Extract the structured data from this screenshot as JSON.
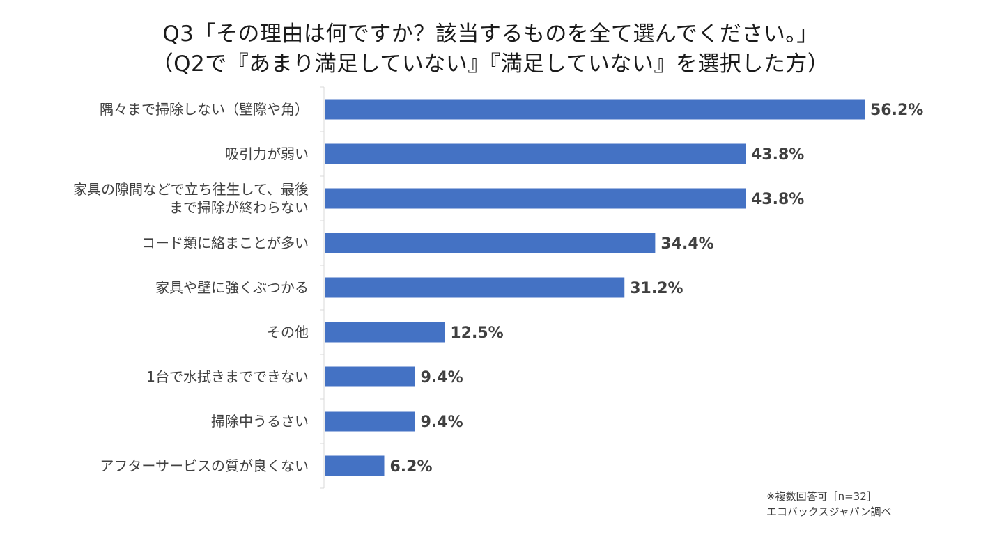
{
  "chart_data": {
    "type": "bar",
    "orientation": "horizontal",
    "title": [
      "Q3「その理由は何ですか？該当するものを全て選んでください。」",
      "（Q2で『あまり満足していない』『満足していない』を選択した方）"
    ],
    "categories": [
      [
        "隅々まで掃除しない（壁際や角）"
      ],
      [
        "吸引力が弱い"
      ],
      [
        "家具の隙間などで立ち往生して、最後",
        "まで掃除が終わらない"
      ],
      [
        "コード類に絡まことが多い"
      ],
      [
        "家具や壁に強くぶつかる"
      ],
      [
        "その他"
      ],
      [
        "1台で水拭きまでできない"
      ],
      [
        "掃除中うるさい"
      ],
      [
        "アフターサービスの質が良くない"
      ]
    ],
    "values": [
      56.2,
      43.8,
      43.8,
      34.4,
      31.2,
      12.5,
      9.4,
      9.4,
      6.2
    ],
    "value_labels": [
      "56.2%",
      "43.8%",
      "43.8%",
      "34.4%",
      "31.2%",
      "12.5%",
      "9.4%",
      "9.4%",
      "6.2%"
    ],
    "unit": "%",
    "xlim": [
      0,
      56.2
    ],
    "bar_color": "#4472C4",
    "axis_color": "#D9D9D9",
    "grid": false,
    "notes": [
      "※複数回答可［n=32］",
      "エコバックスジャパン調べ"
    ]
  }
}
